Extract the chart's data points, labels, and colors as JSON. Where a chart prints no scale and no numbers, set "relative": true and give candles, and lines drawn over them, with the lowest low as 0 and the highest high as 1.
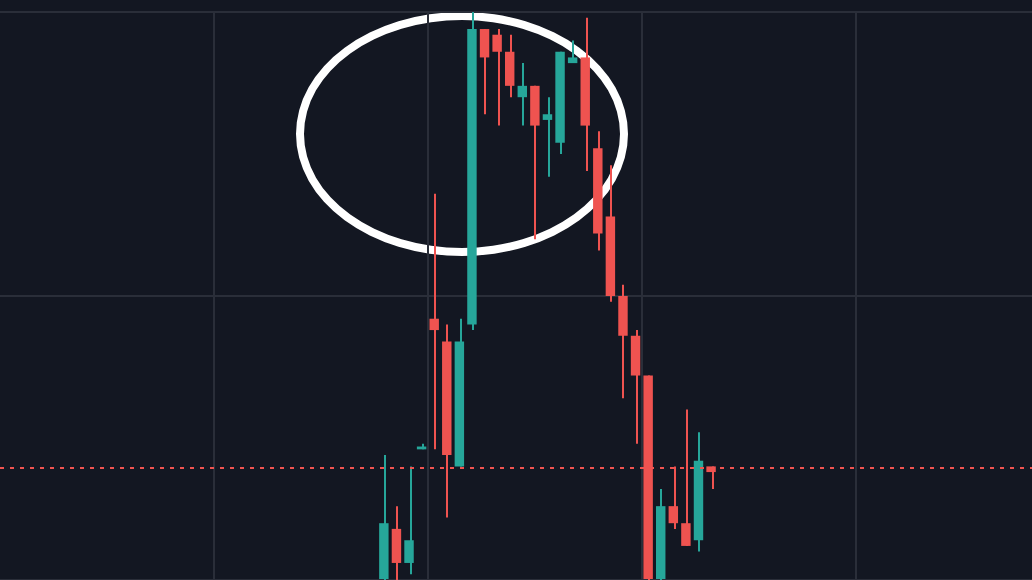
{
  "chart_data": {
    "type": "candlestick",
    "relative": true,
    "grid": true,
    "legend": false,
    "categories": [
      null,
      null,
      null,
      null,
      null,
      null,
      null,
      null,
      null,
      null,
      null,
      null,
      null,
      null,
      null,
      null,
      null,
      null,
      null,
      null,
      null,
      null,
      null,
      null,
      null,
      null,
      null,
      null,
      null,
      null,
      null,
      null,
      null,
      null,
      null,
      null,
      null,
      null,
      null,
      null,
      null,
      null,
      null,
      null,
      null,
      null,
      null,
      null,
      null,
      null,
      null,
      null,
      null,
      null,
      null,
      null,
      null,
      null,
      null,
      null,
      null,
      null,
      null,
      null,
      null,
      null,
      null,
      null,
      null,
      null,
      null,
      null,
      null,
      null,
      null,
      null,
      null,
      null,
      null,
      null,
      null,
      null
    ],
    "ohlc": [
      null,
      null,
      null,
      null,
      null,
      null,
      null,
      null,
      null,
      null,
      null,
      null,
      null,
      null,
      null,
      null,
      null,
      null,
      null,
      null,
      null,
      null,
      null,
      null,
      null,
      null,
      null,
      null,
      null,
      null,
      [
        0,
        0.22,
        0,
        0.1
      ],
      [
        0.09,
        0.13,
        0,
        0.03
      ],
      [
        0.03,
        0.2,
        0.01,
        0.07
      ],
      [
        0.23,
        0.24,
        0.23,
        0.235
      ],
      [
        0.46,
        0.68,
        0.23,
        0.44
      ],
      [
        0.42,
        0.45,
        0.11,
        0.22
      ],
      [
        0.2,
        0.46,
        0.2,
        0.42
      ],
      [
        0.45,
        1.0,
        0.44,
        0.97
      ],
      [
        0.97,
        0.97,
        0.82,
        0.92
      ],
      [
        0.96,
        0.97,
        0.8,
        0.93
      ],
      [
        0.93,
        0.96,
        0.85,
        0.87
      ],
      [
        0.85,
        0.91,
        0.8,
        0.87
      ],
      [
        0.87,
        0.87,
        0.6,
        0.8
      ],
      [
        0.81,
        0.85,
        0.71,
        0.82
      ],
      [
        0.77,
        0.93,
        0.75,
        0.93
      ],
      [
        0.91,
        0.95,
        0.91,
        0.92
      ],
      [
        0.92,
        0.99,
        0.72,
        0.8
      ],
      [
        0.76,
        0.79,
        0.58,
        0.61
      ],
      [
        0.64,
        0.73,
        0.49,
        0.5
      ],
      [
        0.5,
        0.52,
        0.32,
        0.43
      ],
      [
        0.43,
        0.44,
        0.24,
        0.36
      ],
      [
        0.36,
        0.36,
        0,
        0
      ],
      [
        0,
        0.16,
        0,
        0.13
      ],
      [
        0.13,
        0.2,
        0.09,
        0.1
      ],
      [
        0.1,
        0.3,
        0.06,
        0.06
      ],
      [
        0.07,
        0.26,
        0.05,
        0.21
      ],
      [
        0.2,
        0.2,
        0.16,
        0.19
      ],
      null,
      null,
      null,
      null,
      null,
      null,
      null,
      null,
      null,
      null,
      null,
      null,
      null,
      null,
      null,
      null,
      null,
      null,
      null,
      null,
      null,
      null,
      null,
      null,
      null
    ],
    "colors": [
      null,
      null,
      null,
      null,
      null,
      null,
      null,
      null,
      null,
      null,
      null,
      null,
      null,
      null,
      null,
      null,
      null,
      null,
      null,
      null,
      null,
      null,
      null,
      null,
      null,
      null,
      null,
      null,
      null,
      null,
      "#26a69a",
      "#ef5350",
      "#26a69a",
      "#26a69a",
      "#ef5350",
      "#ef5350",
      "#26a69a",
      "#26a69a",
      "#ef5350",
      "#ef5350",
      "#ef5350",
      "#26a69a",
      "#ef5350",
      "#26a69a",
      "#26a69a",
      "#26a69a",
      "#ef5350",
      "#ef5350",
      "#ef5350",
      "#ef5350",
      "#ef5350",
      "#ef5350",
      "#26a69a",
      "#ef5350",
      "#ef5350",
      "#26a69a",
      "#ef5350",
      null,
      null,
      null,
      null,
      null,
      null,
      null,
      null,
      null,
      null,
      null,
      null,
      null,
      null,
      null,
      null,
      null,
      null,
      null,
      null,
      null,
      null,
      null,
      null,
      null
    ],
    "ref_lines": [
      {
        "axis": "y",
        "value": 0.197,
        "color": "#ef5350",
        "line_style": "dotted"
      }
    ]
  }
}
